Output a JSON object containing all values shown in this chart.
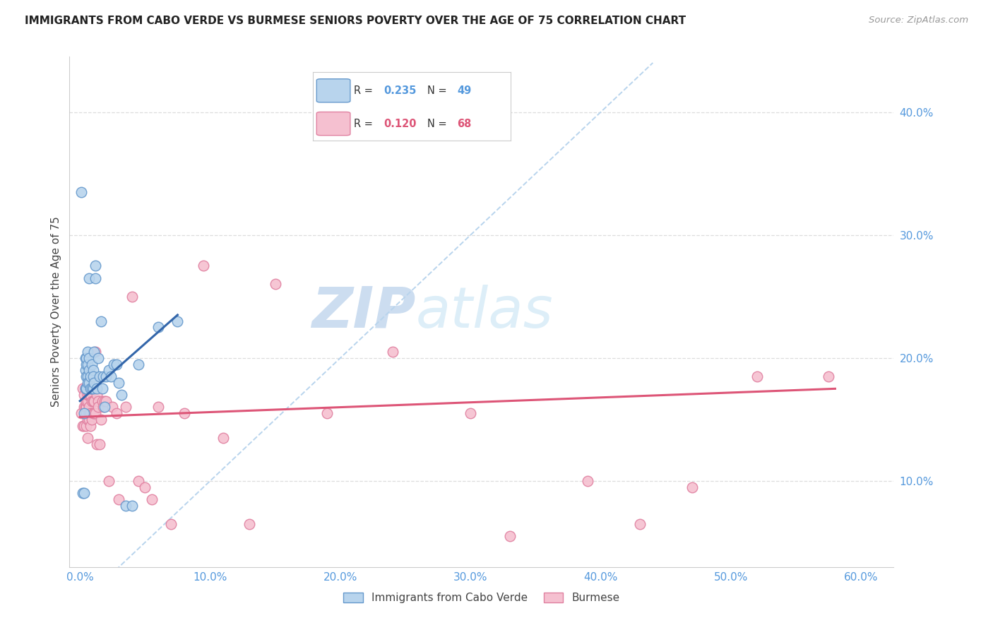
{
  "title": "IMMIGRANTS FROM CABO VERDE VS BURMESE SENIORS POVERTY OVER THE AGE OF 75 CORRELATION CHART",
  "source": "Source: ZipAtlas.com",
  "ylabel": "Seniors Poverty Over the Age of 75",
  "xlabel_ticks": [
    "0.0%",
    "10.0%",
    "20.0%",
    "30.0%",
    "40.0%",
    "50.0%",
    "60.0%"
  ],
  "xlabel_vals": [
    0.0,
    0.1,
    0.2,
    0.3,
    0.4,
    0.5,
    0.6
  ],
  "ylabel_ticks": [
    "10.0%",
    "20.0%",
    "30.0%",
    "40.0%"
  ],
  "ylabel_vals": [
    0.1,
    0.2,
    0.3,
    0.4
  ],
  "xlim": [
    -0.008,
    0.625
  ],
  "ylim": [
    0.03,
    0.445
  ],
  "R_cabo": 0.235,
  "N_cabo": 49,
  "R_burmese": 0.12,
  "N_burmese": 68,
  "cabo_color": "#b8d4ed",
  "cabo_edge_color": "#6699cc",
  "burmese_color": "#f5c0d0",
  "burmese_edge_color": "#e080a0",
  "cabo_line_color": "#3366aa",
  "burmese_line_color": "#dd5577",
  "diagonal_color": "#b8d4ed",
  "background_color": "#ffffff",
  "grid_color": "#dddddd",
  "watermark_zip": "ZIP",
  "watermark_atlas": "atlas",
  "watermark_color": "#ddeeff",
  "legend_label_cabo": "Immigrants from Cabo Verde",
  "legend_label_burmese": "Burmese",
  "cabo_x": [
    0.001,
    0.002,
    0.003,
    0.003,
    0.004,
    0.004,
    0.004,
    0.005,
    0.005,
    0.005,
    0.005,
    0.006,
    0.006,
    0.006,
    0.006,
    0.007,
    0.007,
    0.007,
    0.007,
    0.008,
    0.008,
    0.009,
    0.009,
    0.01,
    0.01,
    0.01,
    0.011,
    0.011,
    0.012,
    0.012,
    0.013,
    0.014,
    0.015,
    0.016,
    0.017,
    0.018,
    0.019,
    0.02,
    0.022,
    0.024,
    0.026,
    0.028,
    0.03,
    0.032,
    0.035,
    0.04,
    0.045,
    0.06,
    0.075
  ],
  "cabo_y": [
    0.335,
    0.09,
    0.09,
    0.155,
    0.19,
    0.175,
    0.2,
    0.195,
    0.185,
    0.2,
    0.175,
    0.195,
    0.185,
    0.205,
    0.18,
    0.265,
    0.2,
    0.19,
    0.18,
    0.185,
    0.175,
    0.195,
    0.175,
    0.19,
    0.185,
    0.175,
    0.205,
    0.18,
    0.275,
    0.265,
    0.175,
    0.2,
    0.185,
    0.23,
    0.175,
    0.185,
    0.16,
    0.185,
    0.19,
    0.185,
    0.195,
    0.195,
    0.18,
    0.17,
    0.08,
    0.08,
    0.195,
    0.225,
    0.23
  ],
  "burmese_x": [
    0.001,
    0.002,
    0.002,
    0.003,
    0.003,
    0.003,
    0.004,
    0.004,
    0.004,
    0.005,
    0.005,
    0.005,
    0.005,
    0.006,
    0.006,
    0.006,
    0.006,
    0.007,
    0.007,
    0.007,
    0.007,
    0.008,
    0.008,
    0.008,
    0.009,
    0.009,
    0.01,
    0.01,
    0.01,
    0.011,
    0.011,
    0.012,
    0.012,
    0.013,
    0.013,
    0.014,
    0.014,
    0.015,
    0.016,
    0.017,
    0.018,
    0.019,
    0.02,
    0.022,
    0.025,
    0.028,
    0.03,
    0.035,
    0.04,
    0.045,
    0.05,
    0.055,
    0.06,
    0.07,
    0.08,
    0.095,
    0.11,
    0.13,
    0.15,
    0.19,
    0.24,
    0.3,
    0.33,
    0.39,
    0.43,
    0.47,
    0.52,
    0.575
  ],
  "burmese_y": [
    0.155,
    0.175,
    0.145,
    0.16,
    0.145,
    0.17,
    0.16,
    0.155,
    0.175,
    0.155,
    0.16,
    0.145,
    0.165,
    0.15,
    0.135,
    0.165,
    0.17,
    0.17,
    0.15,
    0.155,
    0.16,
    0.155,
    0.145,
    0.17,
    0.15,
    0.165,
    0.155,
    0.165,
    0.185,
    0.165,
    0.155,
    0.155,
    0.205,
    0.13,
    0.17,
    0.165,
    0.16,
    0.13,
    0.15,
    0.165,
    0.16,
    0.165,
    0.165,
    0.1,
    0.16,
    0.155,
    0.085,
    0.16,
    0.25,
    0.1,
    0.095,
    0.085,
    0.16,
    0.065,
    0.155,
    0.275,
    0.135,
    0.065,
    0.26,
    0.155,
    0.205,
    0.155,
    0.055,
    0.1,
    0.065,
    0.095,
    0.185,
    0.185
  ]
}
